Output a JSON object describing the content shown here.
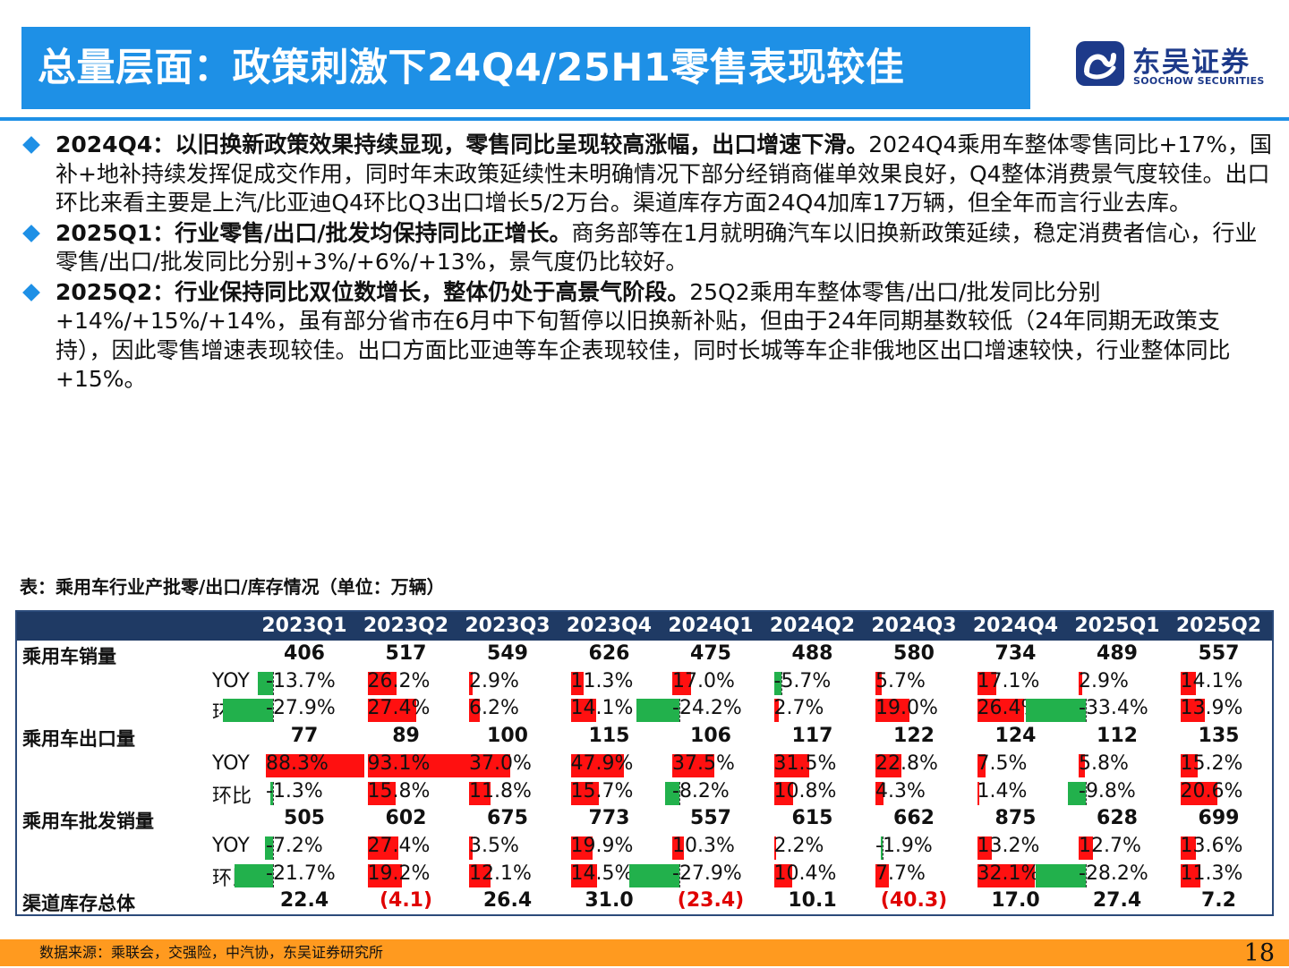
{
  "header": {
    "title": "总量层面：政策刺激下24Q4/25H1零售表现较佳",
    "logo_cn": "东吴证券",
    "logo_en": "SOOCHOW SECURITIES",
    "accent": "#1E90E6"
  },
  "bullets": [
    {
      "bold": "2024Q4：以旧换新政策效果持续显现，零售同比呈现较高涨幅，出口增速下滑。",
      "text": "2024Q4乘用车整体零售同比+17%，国补+地补持续发挥促成交作用，同时年末政策延续性未明确情况下部分经销商催单效果良好，Q4整体消费景气度较佳。出口环比来看主要是上汽/比亚迪Q4环比Q3出口增长5/2万台。渠道库存方面24Q4加库17万辆，但全年而言行业去库。"
    },
    {
      "bold": "2025Q1：行业零售/出口/批发均保持同比正增长。",
      "text": "商务部等在1月就明确汽车以旧换新政策延续，稳定消费者信心，行业零售/出口/批发同比分别+3%/+6%/+13%，景气度仍比较好。"
    },
    {
      "bold": "2025Q2：行业保持同比双位数增长，整体仍处于高景气阶段。",
      "text": "25Q2乘用车整体零售/出口/批发同比分别+14%/+15%/+14%，虽有部分省市在6月中下旬暂停以旧换新补贴，但由于24年同期基数较低（24年同期无政策支持），因此零售增速表现较佳。出口方面比亚迪等车企表现较佳，同时长城等车企非俄地区出口增速较快，行业整体同比+15%。"
    }
  ],
  "table": {
    "caption": "表：乘用车行业产批零/出口/库存情况（单位：万辆）",
    "columns": [
      "2023Q1",
      "2023Q2",
      "2023Q3",
      "2023Q4",
      "2024Q1",
      "2024Q2",
      "2024Q3",
      "2024Q4",
      "2025Q1",
      "2025Q2"
    ],
    "groups": [
      {
        "label": "乘用车销量",
        "values": [
          "406",
          "517",
          "549",
          "626",
          "475",
          "488",
          "580",
          "734",
          "489",
          "557"
        ],
        "yoy_label": "YOY",
        "yoy": [
          "-13.7%",
          "26.2%",
          "2.9%",
          "11.3%",
          "17.0%",
          "-5.7%",
          "5.7%",
          "17.1%",
          "2.9%",
          "14.1%"
        ],
        "yoy_num": [
          -13.7,
          26.2,
          2.9,
          11.3,
          17.0,
          -5.7,
          5.7,
          17.1,
          2.9,
          14.1
        ],
        "qoq_label": "环比",
        "qoq": [
          "-27.9%",
          "27.4%",
          "6.2%",
          "14.1%",
          "-24.2%",
          "2.7%",
          "19.0%",
          "26.4%",
          "-33.4%",
          "13.9%"
        ],
        "qoq_num": [
          -27.9,
          27.4,
          6.2,
          14.1,
          -24.2,
          2.7,
          19.0,
          26.4,
          -33.4,
          13.9
        ]
      },
      {
        "label": "乘用车出口量",
        "values": [
          "77",
          "89",
          "100",
          "115",
          "106",
          "117",
          "122",
          "124",
          "112",
          "135"
        ],
        "yoy_label": "YOY",
        "yoy": [
          "88.3%",
          "93.1%",
          "37.0%",
          "47.9%",
          "37.5%",
          "31.5%",
          "22.8%",
          "7.5%",
          "5.8%",
          "15.2%"
        ],
        "yoy_num": [
          88.3,
          93.1,
          37.0,
          47.9,
          37.5,
          31.5,
          22.8,
          7.5,
          5.8,
          15.2
        ],
        "qoq_label": "环比",
        "qoq": [
          "-1.3%",
          "15.8%",
          "11.8%",
          "15.7%",
          "-8.2%",
          "10.8%",
          "4.3%",
          "1.4%",
          "-9.8%",
          "20.6%"
        ],
        "qoq_num": [
          -1.3,
          15.8,
          11.8,
          15.7,
          -8.2,
          10.8,
          4.3,
          1.4,
          -9.8,
          20.6
        ]
      },
      {
        "label": "乘用车批发销量",
        "values": [
          "505",
          "602",
          "675",
          "773",
          "557",
          "615",
          "662",
          "875",
          "628",
          "699"
        ],
        "yoy_label": "YOY",
        "yoy": [
          "-7.2%",
          "27.4%",
          "3.5%",
          "19.9%",
          "10.3%",
          "2.2%",
          "-1.9%",
          "13.2%",
          "12.7%",
          "13.6%"
        ],
        "yoy_num": [
          -7.2,
          27.4,
          3.5,
          19.9,
          10.3,
          2.2,
          -1.9,
          13.2,
          12.7,
          13.6
        ],
        "qoq_label": "环比",
        "qoq": [
          "-21.7%",
          "19.2%",
          "12.1%",
          "14.5%",
          "-27.9%",
          "10.4%",
          "7.7%",
          "32.1%",
          "-28.2%",
          "11.3%"
        ],
        "qoq_num": [
          -21.7,
          19.2,
          12.1,
          14.5,
          -27.9,
          10.4,
          7.7,
          32.1,
          -28.2,
          11.3
        ]
      }
    ],
    "inventory": {
      "label": "渠道库存总体",
      "values": [
        "22.4",
        "(4.1)",
        "26.4",
        "31.0",
        "(23.4)",
        "10.1",
        "(40.3)",
        "17.0",
        "27.4",
        "7.2"
      ]
    },
    "colors": {
      "positive_bar": "#ff1010",
      "negative_bar": "#22b14c",
      "header_bg": "#1F3A64"
    }
  },
  "footer": {
    "source": "数据来源：乘联会，交强险，中汽协，东吴证券研究所",
    "page": "18"
  }
}
